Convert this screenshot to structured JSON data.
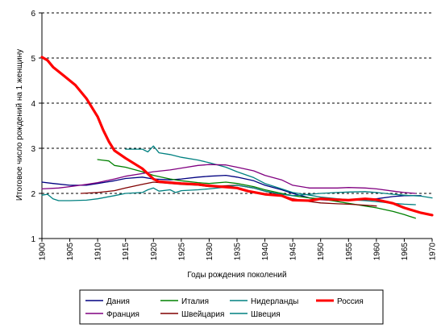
{
  "chart_data": {
    "type": "line",
    "title": "",
    "xlabel": "Годы рождения поколений",
    "ylabel": "Итоговое число рождений на 1 женщину",
    "xlim": [
      1900,
      1970
    ],
    "ylim": [
      1,
      6
    ],
    "x_ticks": [
      1900,
      1905,
      1910,
      1915,
      1920,
      1925,
      1930,
      1935,
      1940,
      1945,
      1950,
      1955,
      1960,
      1965,
      1970
    ],
    "y_ticks": [
      1,
      2,
      3,
      4,
      5,
      6
    ],
    "grid": "horizontal dashed",
    "legend_position": "bottom",
    "series": [
      {
        "name": "Дания",
        "color": "#000080",
        "width": 1.3,
        "points": [
          [
            1900,
            2.25
          ],
          [
            1902,
            2.22
          ],
          [
            1905,
            2.18
          ],
          [
            1908,
            2.18
          ],
          [
            1910,
            2.22
          ],
          [
            1913,
            2.28
          ],
          [
            1915,
            2.33
          ],
          [
            1918,
            2.36
          ],
          [
            1920,
            2.32
          ],
          [
            1923,
            2.3
          ],
          [
            1925,
            2.32
          ],
          [
            1928,
            2.36
          ],
          [
            1930,
            2.38
          ],
          [
            1933,
            2.4
          ],
          [
            1935,
            2.36
          ],
          [
            1938,
            2.28
          ],
          [
            1940,
            2.18
          ],
          [
            1943,
            2.08
          ],
          [
            1945,
            2.0
          ],
          [
            1948,
            1.9
          ],
          [
            1950,
            1.86
          ],
          [
            1953,
            1.84
          ],
          [
            1955,
            1.85
          ],
          [
            1958,
            1.86
          ],
          [
            1960,
            1.88
          ],
          [
            1963,
            1.93
          ],
          [
            1965,
            1.95
          ],
          [
            1968,
            1.95
          ]
        ]
      },
      {
        "name": "Италия",
        "color": "#008000",
        "width": 1.3,
        "points": [
          [
            1910,
            2.75
          ],
          [
            1912,
            2.72
          ],
          [
            1913,
            2.62
          ],
          [
            1915,
            2.58
          ],
          [
            1918,
            2.48
          ],
          [
            1920,
            2.4
          ],
          [
            1923,
            2.32
          ],
          [
            1925,
            2.28
          ],
          [
            1928,
            2.24
          ],
          [
            1930,
            2.22
          ],
          [
            1933,
            2.25
          ],
          [
            1935,
            2.22
          ],
          [
            1938,
            2.15
          ],
          [
            1940,
            2.08
          ],
          [
            1943,
            2.0
          ],
          [
            1945,
            1.95
          ],
          [
            1948,
            1.9
          ],
          [
            1950,
            1.88
          ],
          [
            1953,
            1.82
          ],
          [
            1955,
            1.78
          ],
          [
            1958,
            1.72
          ],
          [
            1960,
            1.68
          ],
          [
            1963,
            1.6
          ],
          [
            1965,
            1.53
          ],
          [
            1967,
            1.45
          ]
        ]
      },
      {
        "name": "Нидерланды",
        "color": "#008080",
        "width": 1.3,
        "points": [
          [
            1915,
            2.98
          ],
          [
            1918,
            2.98
          ],
          [
            1919,
            2.92
          ],
          [
            1920,
            3.05
          ],
          [
            1921,
            2.9
          ],
          [
            1923,
            2.86
          ],
          [
            1925,
            2.8
          ],
          [
            1928,
            2.74
          ],
          [
            1930,
            2.68
          ],
          [
            1933,
            2.58
          ],
          [
            1935,
            2.48
          ],
          [
            1938,
            2.35
          ],
          [
            1940,
            2.22
          ],
          [
            1943,
            2.1
          ],
          [
            1945,
            2.02
          ],
          [
            1948,
            1.96
          ],
          [
            1950,
            1.92
          ],
          [
            1953,
            1.88
          ],
          [
            1955,
            1.86
          ],
          [
            1958,
            1.84
          ],
          [
            1960,
            1.82
          ],
          [
            1963,
            1.78
          ],
          [
            1965,
            1.76
          ],
          [
            1967,
            1.75
          ]
        ]
      },
      {
        "name": "Россия",
        "color": "#ff0000",
        "width": 3.2,
        "points": [
          [
            1900,
            5.02
          ],
          [
            1901,
            4.95
          ],
          [
            1902,
            4.8
          ],
          [
            1904,
            4.6
          ],
          [
            1906,
            4.4
          ],
          [
            1908,
            4.1
          ],
          [
            1910,
            3.7
          ],
          [
            1911,
            3.4
          ],
          [
            1912,
            3.15
          ],
          [
            1913,
            2.95
          ],
          [
            1915,
            2.78
          ],
          [
            1918,
            2.55
          ],
          [
            1920,
            2.32
          ],
          [
            1921,
            2.26
          ],
          [
            1923,
            2.24
          ],
          [
            1925,
            2.22
          ],
          [
            1928,
            2.2
          ],
          [
            1930,
            2.17
          ],
          [
            1933,
            2.14
          ],
          [
            1935,
            2.12
          ],
          [
            1937,
            2.05
          ],
          [
            1940,
            1.98
          ],
          [
            1943,
            1.95
          ],
          [
            1945,
            1.85
          ],
          [
            1948,
            1.84
          ],
          [
            1950,
            1.88
          ],
          [
            1953,
            1.86
          ],
          [
            1955,
            1.85
          ],
          [
            1958,
            1.88
          ],
          [
            1960,
            1.86
          ],
          [
            1963,
            1.78
          ],
          [
            1965,
            1.68
          ],
          [
            1968,
            1.57
          ],
          [
            1970,
            1.52
          ]
        ]
      },
      {
        "name": "Франция",
        "color": "#800080",
        "width": 1.3,
        "points": [
          [
            1900,
            2.1
          ],
          [
            1903,
            2.12
          ],
          [
            1905,
            2.15
          ],
          [
            1908,
            2.2
          ],
          [
            1910,
            2.24
          ],
          [
            1913,
            2.32
          ],
          [
            1915,
            2.38
          ],
          [
            1918,
            2.44
          ],
          [
            1920,
            2.48
          ],
          [
            1923,
            2.52
          ],
          [
            1925,
            2.56
          ],
          [
            1928,
            2.62
          ],
          [
            1930,
            2.64
          ],
          [
            1933,
            2.63
          ],
          [
            1935,
            2.58
          ],
          [
            1938,
            2.5
          ],
          [
            1940,
            2.4
          ],
          [
            1943,
            2.3
          ],
          [
            1945,
            2.18
          ],
          [
            1948,
            2.12
          ],
          [
            1950,
            2.12
          ],
          [
            1953,
            2.12
          ],
          [
            1955,
            2.13
          ],
          [
            1958,
            2.12
          ],
          [
            1960,
            2.1
          ],
          [
            1963,
            2.05
          ],
          [
            1965,
            2.02
          ],
          [
            1967,
            2.0
          ]
        ]
      },
      {
        "name": "Швейцария",
        "color": "#800000",
        "width": 1.3,
        "points": [
          [
            1907,
            2.0
          ],
          [
            1910,
            2.02
          ],
          [
            1913,
            2.06
          ],
          [
            1915,
            2.12
          ],
          [
            1918,
            2.2
          ],
          [
            1920,
            2.25
          ],
          [
            1923,
            2.22
          ],
          [
            1925,
            2.2
          ],
          [
            1928,
            2.18
          ],
          [
            1930,
            2.15
          ],
          [
            1933,
            2.17
          ],
          [
            1935,
            2.18
          ],
          [
            1938,
            2.12
          ],
          [
            1940,
            2.05
          ],
          [
            1943,
            1.96
          ],
          [
            1945,
            1.88
          ],
          [
            1948,
            1.82
          ],
          [
            1950,
            1.79
          ],
          [
            1953,
            1.77
          ],
          [
            1955,
            1.76
          ],
          [
            1958,
            1.74
          ],
          [
            1960,
            1.72
          ]
        ]
      },
      {
        "name": "Швеция",
        "color": "#008080",
        "width": 1.3,
        "points": [
          [
            1900,
            1.96
          ],
          [
            1901,
            1.98
          ],
          [
            1902,
            1.88
          ],
          [
            1903,
            1.84
          ],
          [
            1905,
            1.84
          ],
          [
            1908,
            1.85
          ],
          [
            1910,
            1.88
          ],
          [
            1913,
            1.95
          ],
          [
            1915,
            2.0
          ],
          [
            1918,
            2.02
          ],
          [
            1919,
            2.08
          ],
          [
            1920,
            2.12
          ],
          [
            1921,
            2.05
          ],
          [
            1923,
            2.08
          ],
          [
            1924,
            2.02
          ],
          [
            1925,
            2.06
          ],
          [
            1928,
            2.08
          ],
          [
            1930,
            2.1
          ],
          [
            1933,
            2.14
          ],
          [
            1935,
            2.18
          ],
          [
            1938,
            2.12
          ],
          [
            1940,
            2.05
          ],
          [
            1943,
            1.98
          ],
          [
            1945,
            1.95
          ],
          [
            1948,
            1.98
          ],
          [
            1950,
            2.0
          ],
          [
            1953,
            2.02
          ],
          [
            1955,
            2.03
          ],
          [
            1958,
            2.04
          ],
          [
            1960,
            2.02
          ],
          [
            1963,
            1.98
          ],
          [
            1965,
            1.96
          ],
          [
            1968,
            1.94
          ],
          [
            1970,
            1.9
          ]
        ]
      }
    ]
  }
}
